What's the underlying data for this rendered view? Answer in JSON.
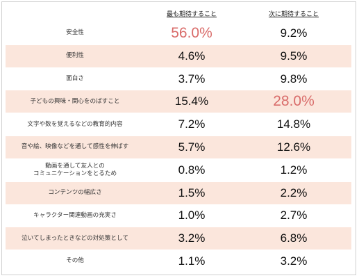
{
  "chart_data": {
    "type": "table",
    "columns": [
      "最も期待すること",
      "次に期待すること"
    ],
    "highlight_color": "#d96c6a",
    "row_shade_color": "#fbe6dc",
    "rows": [
      {
        "label": "安全性",
        "v1": "56.0%",
        "v2": "9.2%",
        "hi1": true,
        "hi2": false
      },
      {
        "label": "便利性",
        "v1": "4.6%",
        "v2": "9.5%",
        "hi1": false,
        "hi2": false
      },
      {
        "label": "面白さ",
        "v1": "3.7%",
        "v2": "9.8%",
        "hi1": false,
        "hi2": false
      },
      {
        "label": "子どもの興味・関心をのばすこと",
        "v1": "15.4%",
        "v2": "28.0%",
        "hi1": false,
        "hi2": true
      },
      {
        "label": "文字や数を覚えるなどの教育的内容",
        "v1": "7.2%",
        "v2": "14.8%",
        "hi1": false,
        "hi2": false
      },
      {
        "label": "音や絵、映像などを通して感性を伸ばす",
        "v1": "5.7%",
        "v2": "12.6%",
        "hi1": false,
        "hi2": false
      },
      {
        "label": "動画を通して友人との\nコミュニケーションをとるため",
        "v1": "0.8%",
        "v2": "1.2%",
        "hi1": false,
        "hi2": false
      },
      {
        "label": "コンテンツの幅広さ",
        "v1": "1.5%",
        "v2": "2.2%",
        "hi1": false,
        "hi2": false
      },
      {
        "label": "キャラクター関連動画の充実さ",
        "v1": "1.0%",
        "v2": "2.7%",
        "hi1": false,
        "hi2": false
      },
      {
        "label": "泣いてしまったときなどの対処策として",
        "v1": "3.2%",
        "v2": "6.8%",
        "hi1": false,
        "hi2": false
      },
      {
        "label": "その他",
        "v1": "1.1%",
        "v2": "3.2%",
        "hi1": false,
        "hi2": false
      }
    ]
  }
}
